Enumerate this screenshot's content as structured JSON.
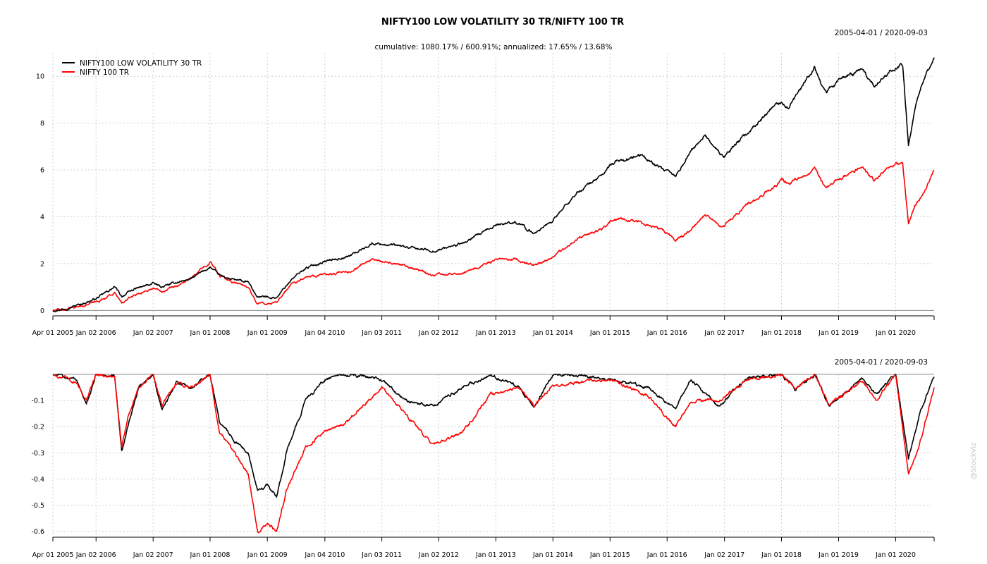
{
  "chart_data": [
    {
      "type": "line",
      "panel": "cumulative",
      "title": "NIFTY100 LOW VOLATILITY 30 TR/NIFTY 100 TR",
      "subtitle": "cumulative: 1080.17% / 600.91%; annualized: 17.65% / 13.68%",
      "date_range": "2005-04-01 / 2020-09-03",
      "legend_position": "top-left",
      "grid": true,
      "ylim": [
        -0.2,
        11.0
      ],
      "y_ticks": [
        0,
        2,
        4,
        6,
        8,
        10
      ],
      "xlim": [
        "2005-04-01",
        "2020-09-03"
      ],
      "x_ticks": [
        {
          "date": "2005-04-01",
          "label": "Apr 01 2005"
        },
        {
          "date": "2006-01-02",
          "label": "Jan 02 2006"
        },
        {
          "date": "2007-01-02",
          "label": "Jan 02 2007"
        },
        {
          "date": "2008-01-01",
          "label": "Jan 01 2008"
        },
        {
          "date": "2009-01-01",
          "label": "Jan 01 2009"
        },
        {
          "date": "2010-01-04",
          "label": "Jan 04 2010"
        },
        {
          "date": "2011-01-03",
          "label": "Jan 03 2011"
        },
        {
          "date": "2012-01-02",
          "label": "Jan 02 2012"
        },
        {
          "date": "2013-01-01",
          "label": "Jan 01 2013"
        },
        {
          "date": "2014-01-01",
          "label": "Jan 01 2014"
        },
        {
          "date": "2015-01-01",
          "label": "Jan 01 2015"
        },
        {
          "date": "2016-01-01",
          "label": "Jan 01 2016"
        },
        {
          "date": "2017-01-02",
          "label": "Jan 02 2017"
        },
        {
          "date": "2018-01-01",
          "label": "Jan 01 2018"
        },
        {
          "date": "2019-01-01",
          "label": "Jan 01 2019"
        },
        {
          "date": "2020-01-01",
          "label": "Jan 01 2020"
        }
      ],
      "series": [
        {
          "name": "NIFTY100 LOW VOLATILITY 30 TR",
          "color": "#000000",
          "points": [
            [
              "2005-04-01",
              0.0
            ],
            [
              "2005-07-01",
              0.1
            ],
            [
              "2005-10-01",
              0.28
            ],
            [
              "2006-01-02",
              0.5
            ],
            [
              "2006-05-01",
              1.0
            ],
            [
              "2006-06-15",
              0.6
            ],
            [
              "2006-09-01",
              0.9
            ],
            [
              "2007-01-02",
              1.15
            ],
            [
              "2007-03-01",
              1.0
            ],
            [
              "2007-06-01",
              1.2
            ],
            [
              "2007-09-01",
              1.35
            ],
            [
              "2008-01-01",
              1.85
            ],
            [
              "2008-03-01",
              1.5
            ],
            [
              "2008-06-01",
              1.3
            ],
            [
              "2008-09-01",
              1.2
            ],
            [
              "2008-10-25",
              0.6
            ],
            [
              "2009-03-01",
              0.55
            ],
            [
              "2009-06-01",
              1.3
            ],
            [
              "2009-09-01",
              1.8
            ],
            [
              "2010-01-04",
              2.1
            ],
            [
              "2010-06-01",
              2.3
            ],
            [
              "2010-11-01",
              2.85
            ],
            [
              "2011-01-03",
              2.85
            ],
            [
              "2011-06-01",
              2.7
            ],
            [
              "2011-12-01",
              2.55
            ],
            [
              "2012-01-02",
              2.6
            ],
            [
              "2012-06-01",
              2.85
            ],
            [
              "2012-12-01",
              3.5
            ],
            [
              "2013-01-01",
              3.65
            ],
            [
              "2013-05-01",
              3.8
            ],
            [
              "2013-09-01",
              3.3
            ],
            [
              "2014-01-01",
              3.85
            ],
            [
              "2014-06-01",
              5.0
            ],
            [
              "2014-12-01",
              5.9
            ],
            [
              "2015-01-01",
              6.2
            ],
            [
              "2015-03-01",
              6.4
            ],
            [
              "2015-08-01",
              6.6
            ],
            [
              "2015-12-01",
              6.0
            ],
            [
              "2016-01-01",
              5.9
            ],
            [
              "2016-02-25",
              5.7
            ],
            [
              "2016-06-01",
              6.8
            ],
            [
              "2016-09-01",
              7.5
            ],
            [
              "2016-12-01",
              6.7
            ],
            [
              "2017-01-02",
              6.6
            ],
            [
              "2017-06-01",
              7.6
            ],
            [
              "2017-12-01",
              8.8
            ],
            [
              "2018-01-01",
              8.8
            ],
            [
              "2018-02-15",
              8.6
            ],
            [
              "2018-08-01",
              10.4
            ],
            [
              "2018-10-15",
              9.3
            ],
            [
              "2019-01-01",
              9.8
            ],
            [
              "2019-06-01",
              10.3
            ],
            [
              "2019-08-15",
              9.6
            ],
            [
              "2020-01-01",
              10.4
            ],
            [
              "2020-02-15",
              10.5
            ],
            [
              "2020-03-23",
              7.1
            ],
            [
              "2020-05-01",
              8.5
            ],
            [
              "2020-07-01",
              10.0
            ],
            [
              "2020-09-03",
              10.8
            ]
          ]
        },
        {
          "name": "NIFTY 100 TR",
          "color": "#ff0000",
          "points": [
            [
              "2005-04-01",
              0.0
            ],
            [
              "2005-07-01",
              0.05
            ],
            [
              "2005-10-01",
              0.2
            ],
            [
              "2006-01-02",
              0.35
            ],
            [
              "2006-05-01",
              0.75
            ],
            [
              "2006-06-15",
              0.3
            ],
            [
              "2006-09-01",
              0.65
            ],
            [
              "2007-01-02",
              0.95
            ],
            [
              "2007-03-01",
              0.85
            ],
            [
              "2007-06-01",
              1.05
            ],
            [
              "2007-09-01",
              1.35
            ],
            [
              "2008-01-01",
              2.1
            ],
            [
              "2008-03-01",
              1.5
            ],
            [
              "2008-06-01",
              1.2
            ],
            [
              "2008-09-01",
              1.0
            ],
            [
              "2008-10-25",
              0.3
            ],
            [
              "2009-03-01",
              0.3
            ],
            [
              "2009-06-01",
              1.1
            ],
            [
              "2009-09-01",
              1.45
            ],
            [
              "2010-01-04",
              1.55
            ],
            [
              "2010-06-01",
              1.6
            ],
            [
              "2010-11-01",
              2.2
            ],
            [
              "2011-01-03",
              2.05
            ],
            [
              "2011-06-01",
              1.9
            ],
            [
              "2011-12-01",
              1.5
            ],
            [
              "2012-01-02",
              1.55
            ],
            [
              "2012-06-01",
              1.6
            ],
            [
              "2012-12-01",
              2.05
            ],
            [
              "2013-01-01",
              2.15
            ],
            [
              "2013-05-01",
              2.2
            ],
            [
              "2013-09-01",
              1.9
            ],
            [
              "2014-01-01",
              2.3
            ],
            [
              "2014-06-01",
              3.05
            ],
            [
              "2014-12-01",
              3.55
            ],
            [
              "2015-01-01",
              3.8
            ],
            [
              "2015-03-01",
              3.95
            ],
            [
              "2015-08-01",
              3.75
            ],
            [
              "2015-12-01",
              3.4
            ],
            [
              "2016-01-01",
              3.3
            ],
            [
              "2016-02-25",
              3.0
            ],
            [
              "2016-06-01",
              3.45
            ],
            [
              "2016-09-01",
              4.1
            ],
            [
              "2016-12-01",
              3.6
            ],
            [
              "2017-01-02",
              3.65
            ],
            [
              "2017-06-01",
              4.55
            ],
            [
              "2017-12-01",
              5.35
            ],
            [
              "2018-01-01",
              5.65
            ],
            [
              "2018-02-15",
              5.4
            ],
            [
              "2018-08-01",
              6.0
            ],
            [
              "2018-10-15",
              5.2
            ],
            [
              "2019-01-01",
              5.6
            ],
            [
              "2019-06-01",
              6.15
            ],
            [
              "2019-08-15",
              5.6
            ],
            [
              "2020-01-01",
              6.3
            ],
            [
              "2020-02-15",
              6.2
            ],
            [
              "2020-03-23",
              3.7
            ],
            [
              "2020-05-01",
              4.4
            ],
            [
              "2020-07-01",
              5.1
            ],
            [
              "2020-09-03",
              6.0
            ]
          ]
        }
      ]
    },
    {
      "type": "line",
      "panel": "drawdown",
      "date_range": "2005-04-01 / 2020-09-03",
      "grid": true,
      "ylim": [
        -0.62,
        0.0
      ],
      "y_ticks": [
        -0.1,
        -0.2,
        -0.3,
        -0.4,
        -0.5,
        -0.6
      ],
      "y_tick_labels": [
        "-0.1",
        "-0.2",
        "-0.3",
        "-0.4",
        "-0.5",
        "-0.6"
      ],
      "xlim": [
        "2005-04-01",
        "2020-09-03"
      ],
      "series": [
        {
          "name": "NIFTY100 LOW VOLATILITY 30 TR",
          "color": "#000000",
          "points": [
            [
              "2005-04-01",
              0.0
            ],
            [
              "2005-09-01",
              -0.02
            ],
            [
              "2005-11-01",
              -0.12
            ],
            [
              "2006-01-02",
              0.0
            ],
            [
              "2006-05-01",
              -0.01
            ],
            [
              "2006-06-15",
              -0.3
            ],
            [
              "2006-08-01",
              -0.18
            ],
            [
              "2006-10-01",
              -0.05
            ],
            [
              "2007-01-02",
              0.0
            ],
            [
              "2007-03-01",
              -0.14
            ],
            [
              "2007-06-01",
              -0.03
            ],
            [
              "2007-09-01",
              -0.05
            ],
            [
              "2008-01-01",
              0.0
            ],
            [
              "2008-03-01",
              -0.18
            ],
            [
              "2008-06-01",
              -0.25
            ],
            [
              "2008-09-01",
              -0.3
            ],
            [
              "2008-11-01",
              -0.45
            ],
            [
              "2009-01-01",
              -0.42
            ],
            [
              "2009-03-01",
              -0.47
            ],
            [
              "2009-05-01",
              -0.3
            ],
            [
              "2009-09-01",
              -0.1
            ],
            [
              "2010-01-04",
              -0.02
            ],
            [
              "2010-06-01",
              0.0
            ],
            [
              "2011-01-03",
              -0.02
            ],
            [
              "2011-06-01",
              -0.1
            ],
            [
              "2011-12-01",
              -0.12
            ],
            [
              "2012-06-01",
              -0.05
            ],
            [
              "2012-12-01",
              0.0
            ],
            [
              "2013-06-01",
              -0.05
            ],
            [
              "2013-09-01",
              -0.13
            ],
            [
              "2014-01-01",
              0.0
            ],
            [
              "2015-01-01",
              -0.02
            ],
            [
              "2015-09-01",
              -0.05
            ],
            [
              "2016-02-25",
              -0.13
            ],
            [
              "2016-06-01",
              -0.02
            ],
            [
              "2016-12-01",
              -0.12
            ],
            [
              "2017-06-01",
              -0.01
            ],
            [
              "2018-01-01",
              0.0
            ],
            [
              "2018-04-01",
              -0.06
            ],
            [
              "2018-08-01",
              0.0
            ],
            [
              "2018-11-01",
              -0.12
            ],
            [
              "2019-06-01",
              -0.02
            ],
            [
              "2019-09-01",
              -0.08
            ],
            [
              "2020-01-01",
              0.0
            ],
            [
              "2020-03-23",
              -0.32
            ],
            [
              "2020-06-01",
              -0.15
            ],
            [
              "2020-09-03",
              -0.01
            ]
          ]
        },
        {
          "name": "NIFTY 100 TR",
          "color": "#ff0000",
          "points": [
            [
              "2005-04-01",
              0.0
            ],
            [
              "2005-09-01",
              -0.03
            ],
            [
              "2005-11-01",
              -0.1
            ],
            [
              "2006-01-02",
              0.0
            ],
            [
              "2006-05-01",
              -0.01
            ],
            [
              "2006-06-15",
              -0.28
            ],
            [
              "2006-08-01",
              -0.15
            ],
            [
              "2006-10-01",
              -0.05
            ],
            [
              "2007-01-02",
              0.0
            ],
            [
              "2007-03-01",
              -0.12
            ],
            [
              "2007-06-01",
              -0.03
            ],
            [
              "2007-09-01",
              -0.05
            ],
            [
              "2008-01-01",
              0.0
            ],
            [
              "2008-03-01",
              -0.22
            ],
            [
              "2008-06-01",
              -0.3
            ],
            [
              "2008-09-01",
              -0.38
            ],
            [
              "2008-11-01",
              -0.6
            ],
            [
              "2009-01-01",
              -0.57
            ],
            [
              "2009-03-01",
              -0.6
            ],
            [
              "2009-05-01",
              -0.45
            ],
            [
              "2009-09-01",
              -0.28
            ],
            [
              "2010-01-04",
              -0.22
            ],
            [
              "2010-06-01",
              -0.18
            ],
            [
              "2011-01-03",
              -0.05
            ],
            [
              "2011-06-01",
              -0.15
            ],
            [
              "2011-12-01",
              -0.27
            ],
            [
              "2012-06-01",
              -0.22
            ],
            [
              "2012-12-01",
              -0.08
            ],
            [
              "2013-06-01",
              -0.05
            ],
            [
              "2013-09-01",
              -0.12
            ],
            [
              "2014-01-01",
              -0.04
            ],
            [
              "2015-01-01",
              -0.02
            ],
            [
              "2015-09-01",
              -0.08
            ],
            [
              "2016-02-25",
              -0.2
            ],
            [
              "2016-06-01",
              -0.1
            ],
            [
              "2016-12-01",
              -0.1
            ],
            [
              "2017-06-01",
              -0.02
            ],
            [
              "2018-01-01",
              0.0
            ],
            [
              "2018-04-01",
              -0.05
            ],
            [
              "2018-08-01",
              0.0
            ],
            [
              "2018-11-01",
              -0.12
            ],
            [
              "2019-06-01",
              -0.02
            ],
            [
              "2019-09-01",
              -0.1
            ],
            [
              "2020-01-01",
              0.0
            ],
            [
              "2020-03-23",
              -0.38
            ],
            [
              "2020-06-01",
              -0.27
            ],
            [
              "2020-09-03",
              -0.05
            ]
          ]
        }
      ]
    }
  ],
  "watermark": "@StockViz"
}
